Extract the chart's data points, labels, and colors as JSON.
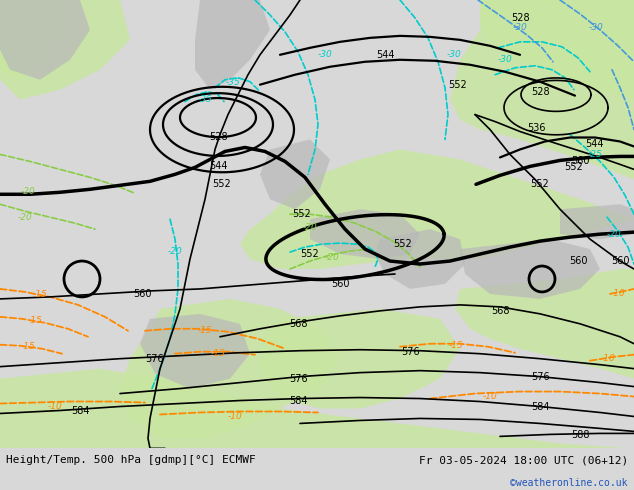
{
  "title_left": "Height/Temp. 500 hPa [gdmp][°C] ECMWF",
  "title_right": "Fr 03-05-2024 18:00 UTC (06+12)",
  "credit": "©weatheronline.co.uk",
  "figsize": [
    6.34,
    4.9
  ],
  "dpi": 100,
  "bg_gray": "#d8d8d8",
  "land_green": "#c8e6a0",
  "land_gray": "#b8b8b8",
  "sea_gray": "#e0e0e0"
}
